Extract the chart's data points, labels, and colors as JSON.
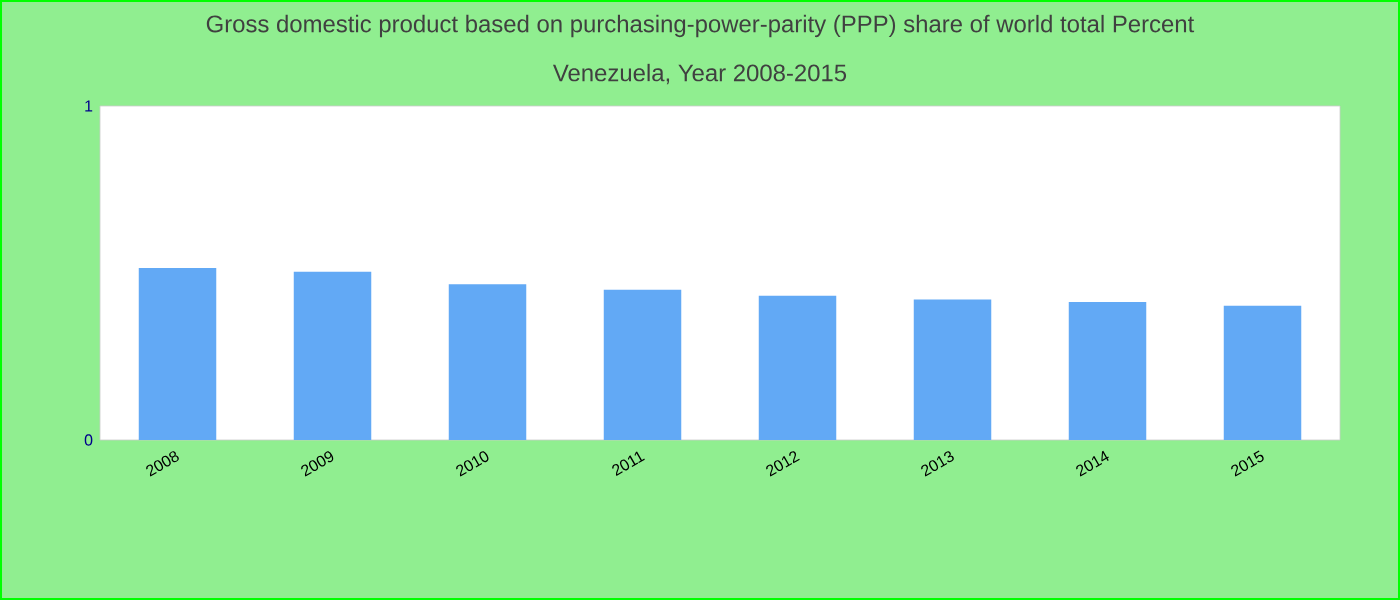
{
  "chart_data": {
    "type": "bar",
    "title": "Gross domestic product based on purchasing-power-parity (PPP) share of world total  Percent",
    "subtitle": "Venezuela, Year 2008-2015",
    "categories": [
      "2008",
      "2009",
      "2010",
      "2011",
      "2012",
      "2013",
      "2014",
      "2015"
    ],
    "values": [
      0.515,
      0.504,
      0.466,
      0.45,
      0.432,
      0.421,
      0.413,
      0.402
    ],
    "color": "#62a9f5",
    "ylim": [
      0,
      1
    ],
    "yticks": [
      0,
      1
    ],
    "grid": false
  }
}
